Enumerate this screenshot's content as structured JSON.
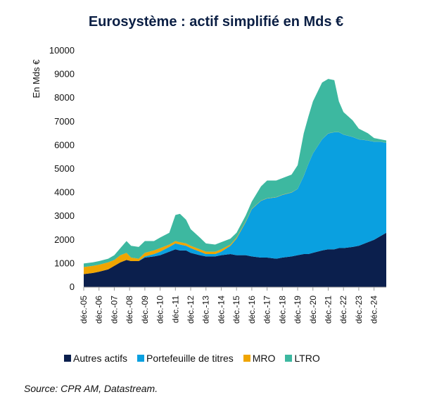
{
  "chart_data": {
    "type": "area",
    "stacked": true,
    "title": "Eurosystème : actif simplifié en Mds €",
    "ylabel": "En Mds €",
    "xlabel": "",
    "ylim": [
      0,
      10000
    ],
    "yticks": [
      0,
      1000,
      2000,
      3000,
      4000,
      5000,
      6000,
      7000,
      8000,
      9000,
      10000
    ],
    "xlim": [
      2005.9,
      2025.7
    ],
    "xtick_labels": [
      "déc.-05",
      "déc.-06",
      "déc.-07",
      "déc.-08",
      "déc.-09",
      "déc.-10",
      "déc.-11",
      "déc.-12",
      "déc.-13",
      "déc.-14",
      "déc.-15",
      "déc.-16",
      "déc.-17",
      "déc.-18",
      "déc.-19",
      "déc.-20",
      "déc.-21",
      "déc.-22",
      "déc.-23",
      "déc.-24"
    ],
    "x": [
      2005.9,
      2006.5,
      2006.9,
      2007.5,
      2007.9,
      2008.3,
      2008.7,
      2009.0,
      2009.5,
      2009.9,
      2010.5,
      2010.9,
      2011.5,
      2011.9,
      2012.2,
      2012.6,
      2012.9,
      2013.5,
      2013.9,
      2014.5,
      2014.9,
      2015.5,
      2015.9,
      2016.5,
      2016.9,
      2017.5,
      2017.9,
      2018.5,
      2018.9,
      2019.5,
      2019.9,
      2020.3,
      2020.6,
      2020.9,
      2021.5,
      2021.9,
      2022.3,
      2022.6,
      2022.9,
      2023.5,
      2023.9,
      2024.5,
      2024.9,
      2025.3,
      2025.7
    ],
    "legend_position": "bottom",
    "series": [
      {
        "name": "Autres actifs",
        "color": "#0b1f4d",
        "values": [
          550,
          600,
          650,
          750,
          900,
          1050,
          1150,
          1100,
          1100,
          1250,
          1300,
          1350,
          1500,
          1600,
          1550,
          1550,
          1450,
          1350,
          1300,
          1300,
          1350,
          1400,
          1350,
          1350,
          1300,
          1250,
          1250,
          1200,
          1250,
          1300,
          1350,
          1400,
          1400,
          1450,
          1550,
          1600,
          1600,
          1650,
          1650,
          1700,
          1750,
          1900,
          2000,
          2150,
          2300
        ]
      },
      {
        "name": "Portefeuille de titres",
        "color": "#0aa0e0",
        "values": [
          0,
          0,
          0,
          0,
          0,
          0,
          0,
          0,
          0,
          50,
          100,
          150,
          200,
          250,
          250,
          200,
          200,
          150,
          100,
          100,
          150,
          350,
          700,
          1400,
          2000,
          2400,
          2500,
          2600,
          2650,
          2700,
          2800,
          3300,
          3800,
          4200,
          4700,
          4900,
          4950,
          4900,
          4800,
          4650,
          4500,
          4300,
          4150,
          4000,
          3800
        ]
      },
      {
        "name": "MRO",
        "color": "#f0a500",
        "values": [
          300,
          300,
          300,
          300,
          250,
          300,
          300,
          150,
          100,
          150,
          150,
          150,
          100,
          100,
          100,
          100,
          100,
          100,
          100,
          100,
          100,
          50,
          50,
          30,
          20,
          10,
          10,
          10,
          10,
          10,
          5,
          5,
          5,
          5,
          5,
          5,
          5,
          5,
          5,
          5,
          5,
          5,
          5,
          5,
          5
        ]
      },
      {
        "name": "LTRO",
        "color": "#3db8a0",
        "values": [
          150,
          150,
          150,
          150,
          200,
          300,
          500,
          500,
          500,
          500,
          400,
          450,
          500,
          1100,
          1200,
          1000,
          700,
          500,
          350,
          300,
          300,
          250,
          200,
          250,
          300,
          600,
          750,
          700,
          700,
          750,
          1000,
          1800,
          2000,
          2200,
          2400,
          2300,
          2200,
          1300,
          950,
          700,
          450,
          300,
          150,
          100,
          100
        ]
      }
    ],
    "source": "Source: CPR AM, Datastream."
  }
}
